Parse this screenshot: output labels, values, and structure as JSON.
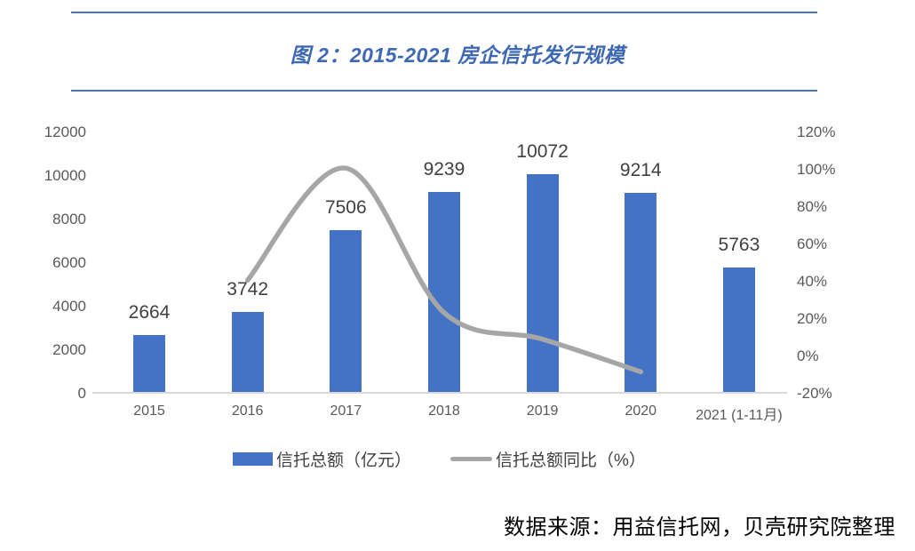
{
  "figure": {
    "title": "图 2：2015-2021 房企信托发行规模",
    "source": "数据来源：用益信托网，贝壳研究院整理"
  },
  "legend": {
    "bar_label": "信托总额（亿元）",
    "line_label": "信托总额同比（%）"
  },
  "chart_data": {
    "type": "bar+line",
    "title": "图 2：2015-2021 房企信托发行规模",
    "categories": [
      "2015",
      "2016",
      "2017",
      "2018",
      "2019",
      "2020",
      "2021 (1-11月)"
    ],
    "series": [
      {
        "name": "信托总额（亿元）",
        "type": "bar",
        "axis": "left",
        "values": [
          2664,
          3742,
          7506,
          9239,
          10072,
          9214,
          5763
        ],
        "data_labels": [
          "2664",
          "3742",
          "7506",
          "9239",
          "10072",
          "9214",
          "5763"
        ]
      },
      {
        "name": "信托总额同比（%）",
        "type": "line",
        "axis": "right",
        "values": [
          null,
          40.5,
          100.6,
          23.1,
          9.0,
          -8.5,
          null
        ]
      }
    ],
    "left_axis": {
      "min": 0,
      "max": 12000,
      "step": 2000,
      "ticks": [
        "0",
        "2000",
        "4000",
        "6000",
        "8000",
        "10000",
        "12000"
      ]
    },
    "right_axis": {
      "min": -20,
      "max": 120,
      "step": 20,
      "ticks": [
        "-20%",
        "0%",
        "20%",
        "40%",
        "60%",
        "80%",
        "100%",
        "120%"
      ]
    },
    "grid": false,
    "legend_position": "bottom"
  },
  "colors": {
    "bar": "#4472C4",
    "line": "#A6A6A6",
    "title": "#3E68B2",
    "rule": "#4472C4",
    "axis_text": "#595959",
    "data_label": "#404040",
    "axis_line": "#D9D9D9",
    "source_text": "#000000"
  }
}
